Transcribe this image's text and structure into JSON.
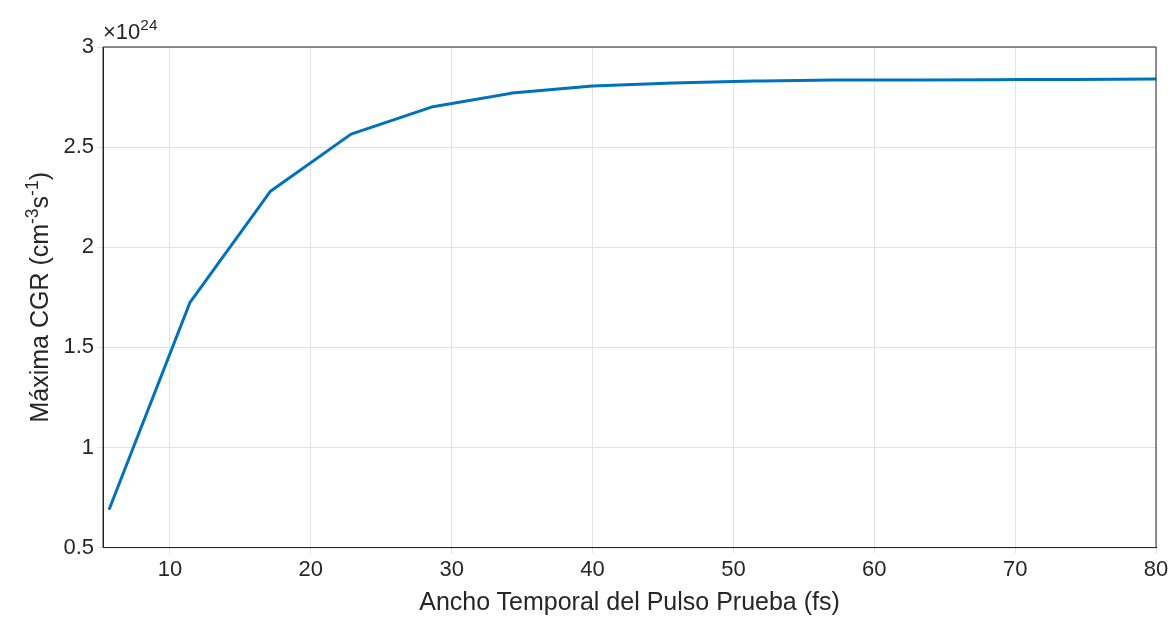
{
  "chart_data": {
    "type": "line",
    "xlabel": "Ancho Temporal del Pulso Prueba (fs)",
    "ylabel": "Máxima CGR (cm$^{-3}$s$^{-1}$)",
    "annotations": [
      "×10$^{24}$"
    ],
    "x": [
      5.71,
      11.43,
      17.14,
      22.86,
      28.57,
      34.29,
      40,
      45.71,
      51.43,
      57.14,
      62.86,
      68.57,
      74.29,
      80
    ],
    "series": [
      {
        "color": "#0072bd",
        "values": [
          0.695,
          1.725,
          2.28,
          2.565,
          2.7,
          2.77,
          2.805,
          2.82,
          2.83,
          2.835,
          2.835,
          2.837,
          2.838,
          2.84
        ]
      }
    ],
    "xlim": [
      5.25,
      80
    ],
    "xticks": [
      10,
      20,
      30,
      40,
      50,
      60,
      70,
      80
    ],
    "ylim": [
      0.5,
      3
    ],
    "yticks": [
      0.5,
      1,
      1.5,
      2,
      2.5,
      3
    ],
    "grid": true,
    "legend": false,
    "marker": "none",
    "line_style": "solid"
  }
}
